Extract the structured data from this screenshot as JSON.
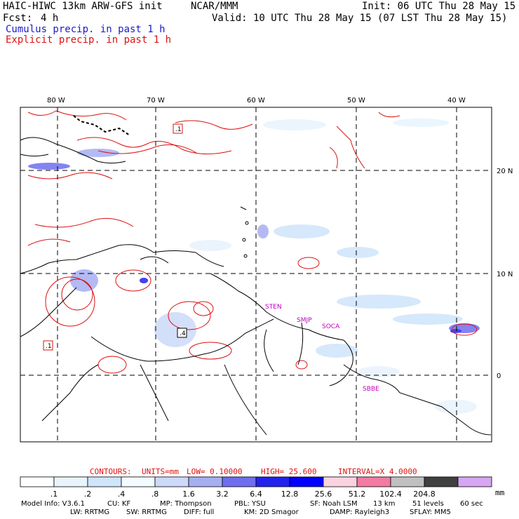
{
  "header": {
    "model": "HAIC-HIWC 13km ARW-GFS init",
    "org": "NCAR/MMM",
    "init": "Init: 06 UTC Thu 28 May 15",
    "fcst_label": "Fcst:",
    "fcst_value": "4 h",
    "valid": "Valid: 10 UTC Thu 28 May 15 (07 LST Thu 28 May 15)",
    "cumulus": "Cumulus precip. in past 1 h",
    "explicit": "Explicit precip. in past 1 h"
  },
  "map": {
    "lon_labels": [
      "80 W",
      "70 W",
      "60 W",
      "50 W",
      "40 W"
    ],
    "lat_labels": [
      "20 N",
      "10 N",
      "0"
    ],
    "stations": [
      "STEN",
      "SMJP",
      "SOCA",
      "SBBE"
    ],
    "box_marks": [
      ".1",
      ".1",
      ".4"
    ]
  },
  "contours": {
    "label": "CONTOURS:",
    "units": "UNITS=mm",
    "low": "LOW= 0.10000",
    "high": "HIGH= 25.600",
    "interval": "INTERVAL=X 4.0000"
  },
  "colorbar": {
    "unit": "mm",
    "ticks": [
      ".1",
      ".2",
      ".4",
      ".8",
      "1.6",
      "3.2",
      "6.4",
      "12.8",
      "25.6",
      "51.2",
      "102.4",
      "204.8"
    ],
    "colors": [
      "#ffffff",
      "#e8f3fd",
      "#cfe5fb",
      "#f2fbff",
      "#ccd9f9",
      "#a6aef2",
      "#6e6ef0",
      "#2222ee",
      "#0000ff",
      "#fbd3de",
      "#f27aa4",
      "#c0c0c0",
      "#404040",
      "#d6a6f2"
    ]
  },
  "footer": {
    "line1": [
      "Model Info: V3.6.1",
      "CU: KF",
      "MP: Thompson",
      "PBL: YSU",
      "SF: Noah LSM",
      "13 km",
      "51 levels",
      "60 sec"
    ],
    "line2": [
      "LW: RRTMG",
      "SW: RRTMG",
      "DIFF: full",
      "KM: 2D Smagor",
      "DAMP: Rayleigh3",
      "SFLAY: MM5"
    ]
  }
}
